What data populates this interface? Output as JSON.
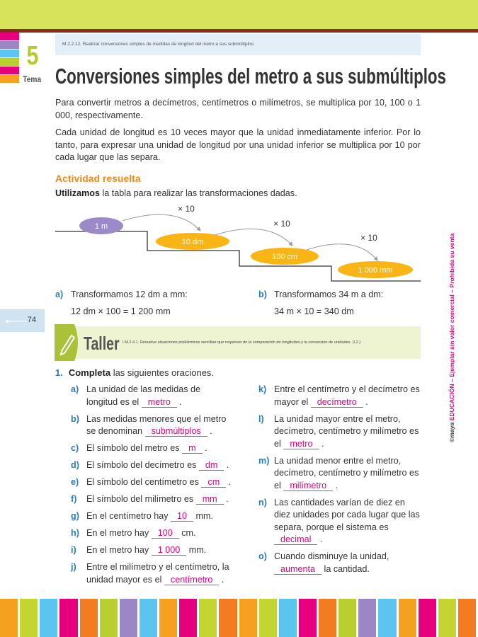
{
  "header": {
    "code": "M.2.2.12. Realizar conversiones simples de medidas de longitud del metro a sus submúltiplos.",
    "tema_number": "5",
    "tema_label": "Tema",
    "title": "Conversiones simples del metro a sus submúltiplos"
  },
  "intro": [
    "Para convertir metros a decímetros, centímetros o milímetros, se multiplica por 10, 100 o 1 000, respectivamente.",
    "Cada unidad de longitud es 10 veces mayor que la unidad inmediatamente inferior. Por lo tanto, para expresar una unidad de longitud por una unidad inferior se multiplica por 10 por cada lugar que las separa."
  ],
  "activity": {
    "heading": "Actividad resuelta",
    "instruction_bold": "Utilizamos",
    "instruction_rest": " la tabla para realizar las transformaciones dadas.",
    "units": [
      "1 m",
      "10 dm",
      "100 cm",
      "1 000 mm"
    ],
    "multipliers": [
      "× 10",
      "× 10",
      "× 10"
    ],
    "examples": [
      {
        "letter": "a)",
        "text": "Transformamos 12 dm a mm:",
        "calc": "12 dm × 100 = 1 200 mm"
      },
      {
        "letter": "b)",
        "text": "Transformamos 34 m a dm:",
        "calc": "34 m × 10 = 340 dm"
      }
    ]
  },
  "page_number": "74",
  "taller": {
    "title": "Taller",
    "criterion": "I.M.2.4.1. Resuelve situaciones problémicas sencillas que requieran de la comparación de longitudes y la conversión de unidades. (I.2.)"
  },
  "exercise": {
    "number": "1.",
    "bold": "Completa",
    "rest": " las siguientes oraciones.",
    "left": [
      {
        "letter": "a)",
        "before": "La unidad de las medidas de longitud es el",
        "answer": "metro",
        "after": "."
      },
      {
        "letter": "b)",
        "before": "Las medidas menores que el metro se denominan",
        "answer": "submúltiplos",
        "after": "."
      },
      {
        "letter": "c)",
        "before": "El símbolo del metro es",
        "answer": "m",
        "after": "."
      },
      {
        "letter": "d)",
        "before": "El símbolo del decímetro es",
        "answer": "dm",
        "after": "."
      },
      {
        "letter": "e)",
        "before": "El símbolo del centímetro es",
        "answer": "cm",
        "after": "."
      },
      {
        "letter": "f)",
        "before": "El símbolo del milímetro es",
        "answer": "mm",
        "after": "."
      },
      {
        "letter": "g)",
        "before": "En el centímetro hay",
        "answer": "10",
        "after": "mm."
      },
      {
        "letter": "h)",
        "before": "En el metro hay",
        "answer": "100",
        "after": "cm."
      },
      {
        "letter": "i)",
        "before": "En el metro hay",
        "answer": "1 000",
        "after": "mm."
      },
      {
        "letter": "j)",
        "before": "Entre el milímetro y el centímetro, la unidad mayor es el",
        "answer": "centímetro",
        "after": "."
      }
    ],
    "right": [
      {
        "letter": "k)",
        "before": "Entre el centímetro y el decímetro es mayor el",
        "answer": "decímetro",
        "after": "."
      },
      {
        "letter": "l)",
        "before": "La unidad mayor entre el metro, decímetro, centímetro y milímetro es el",
        "answer": "metro",
        "after": "."
      },
      {
        "letter": "m)",
        "before": "La unidad menor entre el metro, decímetro, centímetro y milímetro es el",
        "answer": "milímetro",
        "after": "."
      },
      {
        "letter": "n)",
        "before": "Las cantidades varían de diez en diez unidades por cada lugar que las separa, porque el sistema es",
        "answer": "decimal",
        "after": "."
      },
      {
        "letter": "o)",
        "before": "Cuando disminuye la unidad,",
        "answer": "aumenta",
        "after": "la cantidad."
      }
    ]
  },
  "side": {
    "brand": "©maya",
    "text": " EDUCACIÓN – Ejemplar sin valor comercial – Prohibida su venta"
  }
}
